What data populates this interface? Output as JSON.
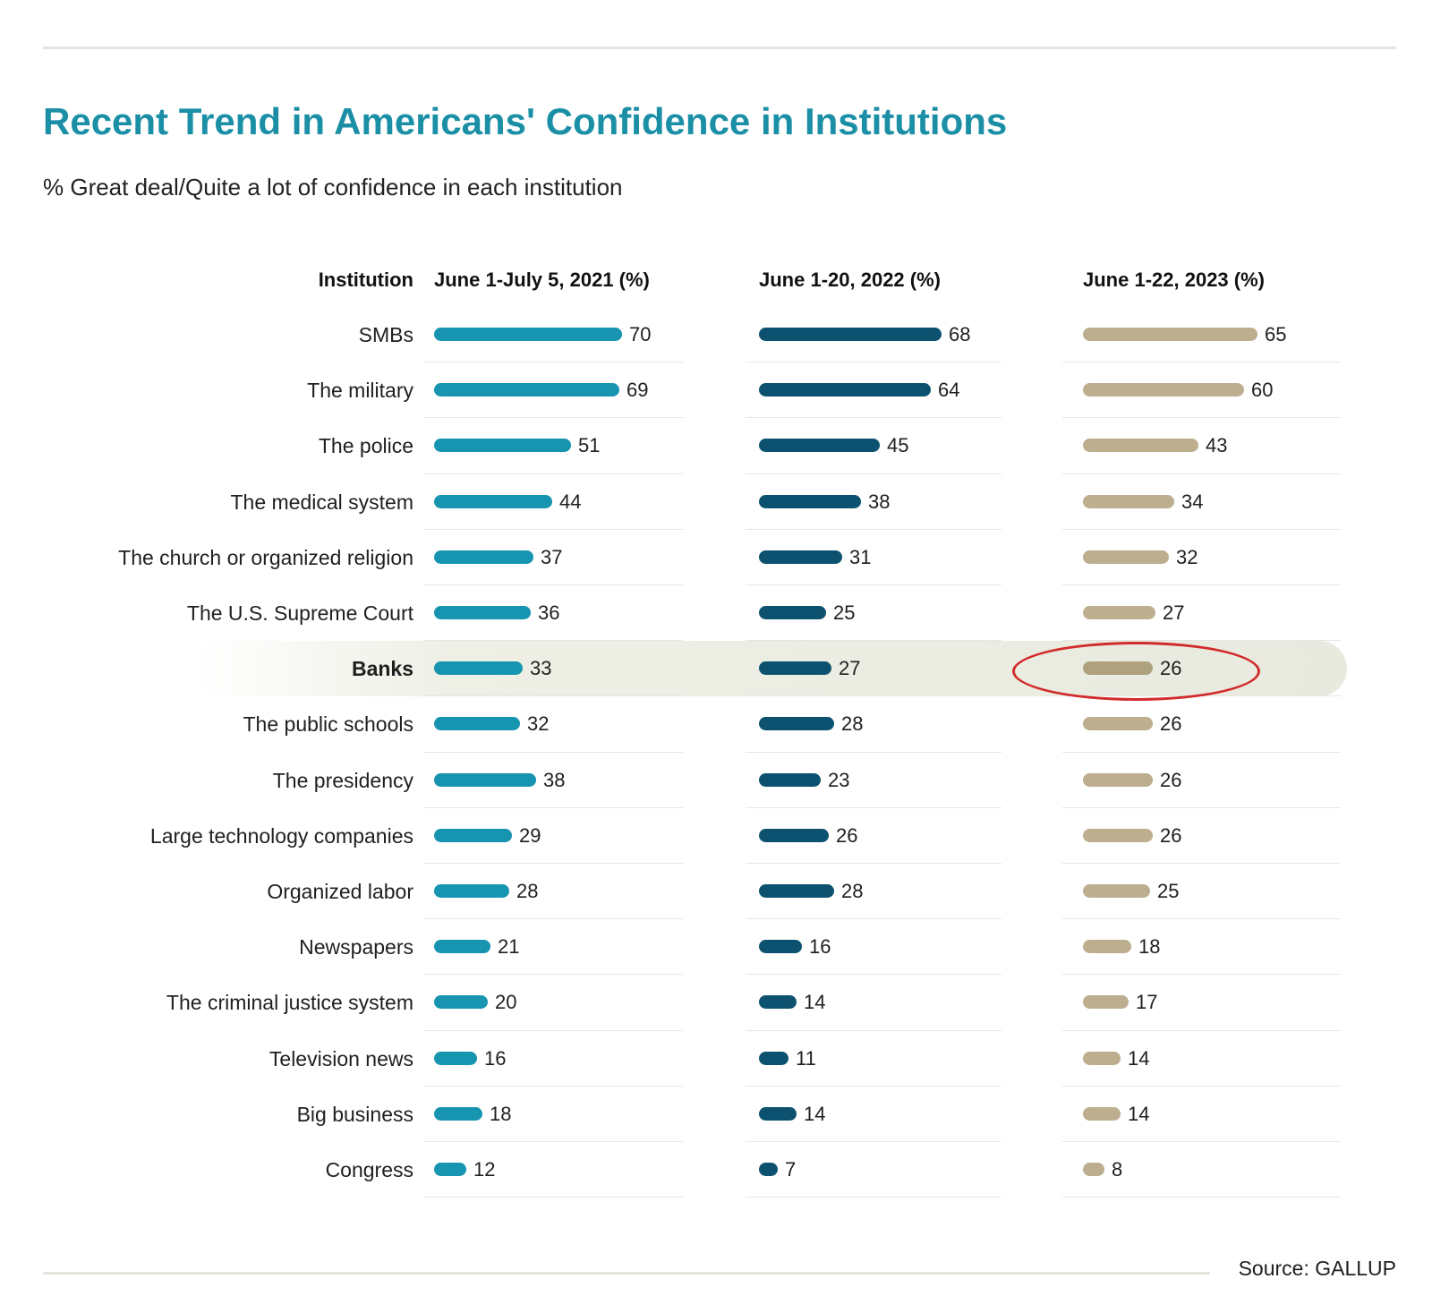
{
  "title": "Recent Trend in Americans' Confidence in Institutions",
  "subtitle": "% Great deal/Quite a lot of confidence in each institution",
  "source": "Source: GALLUP",
  "colors": {
    "title": "#1a8fa6",
    "series_2021": "#1694b0",
    "series_2022": "#0c5270",
    "series_2023": "#bcae8e",
    "highlight_2023": "#aea17e",
    "annotation": "#d22b2b"
  },
  "highlighted_row": "Banks",
  "chart_data": {
    "type": "bar",
    "orientation": "horizontal",
    "category_header": "Institution",
    "categories": [
      "SMBs",
      "The military",
      "The police",
      "The medical system",
      "The church or organized religion",
      "The U.S. Supreme Court",
      "Banks",
      "The public schools",
      "The presidency",
      "Large technology companies",
      "Organized labor",
      "Newspapers",
      "The criminal justice system",
      "Television news",
      "Big business",
      "Congress"
    ],
    "series": [
      {
        "name": "June 1-July 5, 2021 (%)",
        "values": [
          70,
          69,
          51,
          44,
          37,
          36,
          33,
          32,
          38,
          29,
          28,
          21,
          20,
          16,
          18,
          12
        ]
      },
      {
        "name": "June 1-20, 2022 (%)",
        "values": [
          68,
          64,
          45,
          38,
          31,
          25,
          27,
          28,
          23,
          26,
          28,
          16,
          14,
          11,
          14,
          7
        ]
      },
      {
        "name": "June 1-22, 2023 (%)",
        "values": [
          65,
          60,
          43,
          34,
          32,
          27,
          26,
          26,
          26,
          26,
          25,
          18,
          17,
          14,
          14,
          8
        ]
      }
    ],
    "grid": false,
    "legend": "column headers"
  }
}
